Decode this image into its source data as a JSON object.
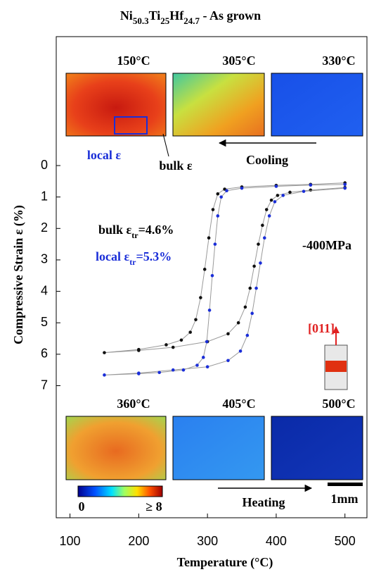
{
  "chart_data": {
    "type": "line",
    "title": "Ni50.3Ti25Hf24.7 - As grown",
    "x_label": "Temperature (°C)",
    "y_label": "Compressive Strain ε (%)",
    "xlim": [
      80,
      532
    ],
    "xticks": [
      100,
      200,
      300,
      400,
      500
    ],
    "ylim": [
      -4.1,
      11.2
    ],
    "yticks": [
      0,
      1,
      2,
      3,
      4,
      5,
      6,
      7
    ],
    "y_inverted": true,
    "series": [
      {
        "name": "bulk ε",
        "color": "#111111",
        "x": [
          500,
          450,
          400,
          350,
          325,
          315,
          308,
          302,
          296,
          290,
          283,
          275,
          262,
          240,
          200,
          150,
          200,
          250,
          300,
          330,
          345,
          355,
          362,
          368,
          374,
          380,
          386,
          393,
          402,
          420,
          450,
          500
        ],
        "values": [
          0.55,
          0.6,
          0.63,
          0.68,
          0.75,
          0.9,
          1.4,
          2.3,
          3.3,
          4.2,
          4.9,
          5.3,
          5.55,
          5.7,
          5.85,
          5.95,
          5.88,
          5.78,
          5.6,
          5.35,
          5.0,
          4.5,
          3.9,
          3.2,
          2.5,
          1.9,
          1.4,
          1.1,
          0.95,
          0.85,
          0.78,
          0.7
        ]
      },
      {
        "name": "local ε",
        "color": "#1a2ed8",
        "x": [
          500,
          450,
          400,
          350,
          328,
          320,
          315,
          311,
          307,
          303,
          299,
          294,
          285,
          265,
          230,
          200,
          150,
          200,
          250,
          300,
          330,
          348,
          358,
          365,
          371,
          377,
          383,
          390,
          398,
          410,
          440,
          500
        ],
        "values": [
          0.6,
          0.62,
          0.66,
          0.72,
          0.8,
          1.0,
          1.6,
          2.5,
          3.5,
          4.6,
          5.6,
          6.1,
          6.35,
          6.5,
          6.58,
          6.62,
          6.66,
          6.6,
          6.5,
          6.4,
          6.2,
          5.9,
          5.4,
          4.7,
          3.9,
          3.1,
          2.3,
          1.6,
          1.15,
          0.95,
          0.82,
          0.72
        ]
      }
    ],
    "annotations": [
      "150°C",
      "305°C",
      "330°C",
      "360°C",
      "405°C",
      "500°C",
      "local ε",
      "bulk ε",
      "Cooling",
      "Heating",
      "bulk εtr=4.6%",
      "local εtr=5.3%",
      "-400MPa",
      "[011]",
      "0",
      "≥ 8",
      "1mm"
    ]
  }
}
